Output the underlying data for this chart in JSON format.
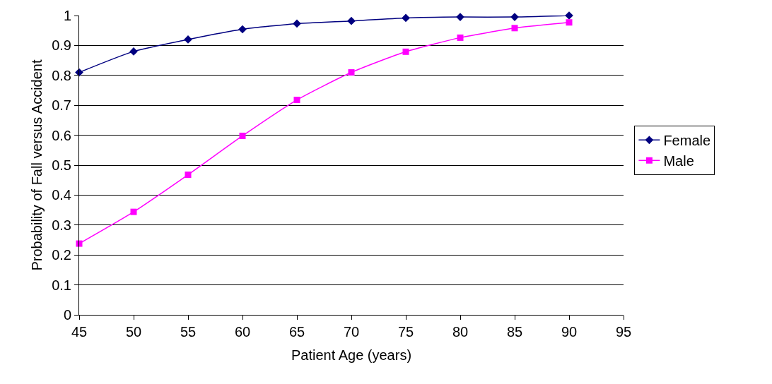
{
  "chart_data": {
    "type": "line",
    "xlabel": "Patient Age (years)",
    "ylabel": "Probability of Fall versus Accident",
    "x": [
      45,
      50,
      55,
      60,
      65,
      70,
      75,
      80,
      85,
      90
    ],
    "series": [
      {
        "name": "Female",
        "color": "#000080",
        "marker": "diamond",
        "values": [
          0.81,
          0.88,
          0.92,
          0.954,
          0.973,
          0.982,
          0.992,
          0.995,
          0.995,
          1.0
        ]
      },
      {
        "name": "Male",
        "color": "#ff00ff",
        "marker": "square",
        "values": [
          0.238,
          0.344,
          0.468,
          0.598,
          0.718,
          0.81,
          0.879,
          0.926,
          0.958,
          0.977
        ]
      }
    ],
    "xlim": [
      45,
      95
    ],
    "xticks": [
      45,
      50,
      55,
      60,
      65,
      70,
      75,
      80,
      85,
      90,
      95
    ],
    "ylim": [
      0,
      1
    ],
    "yticks": [
      0,
      0.1,
      0.2,
      0.3,
      0.4,
      0.5,
      0.6,
      0.7,
      0.8,
      0.9,
      1
    ],
    "grid": "y",
    "legend": "right",
    "line_style": "solid"
  }
}
